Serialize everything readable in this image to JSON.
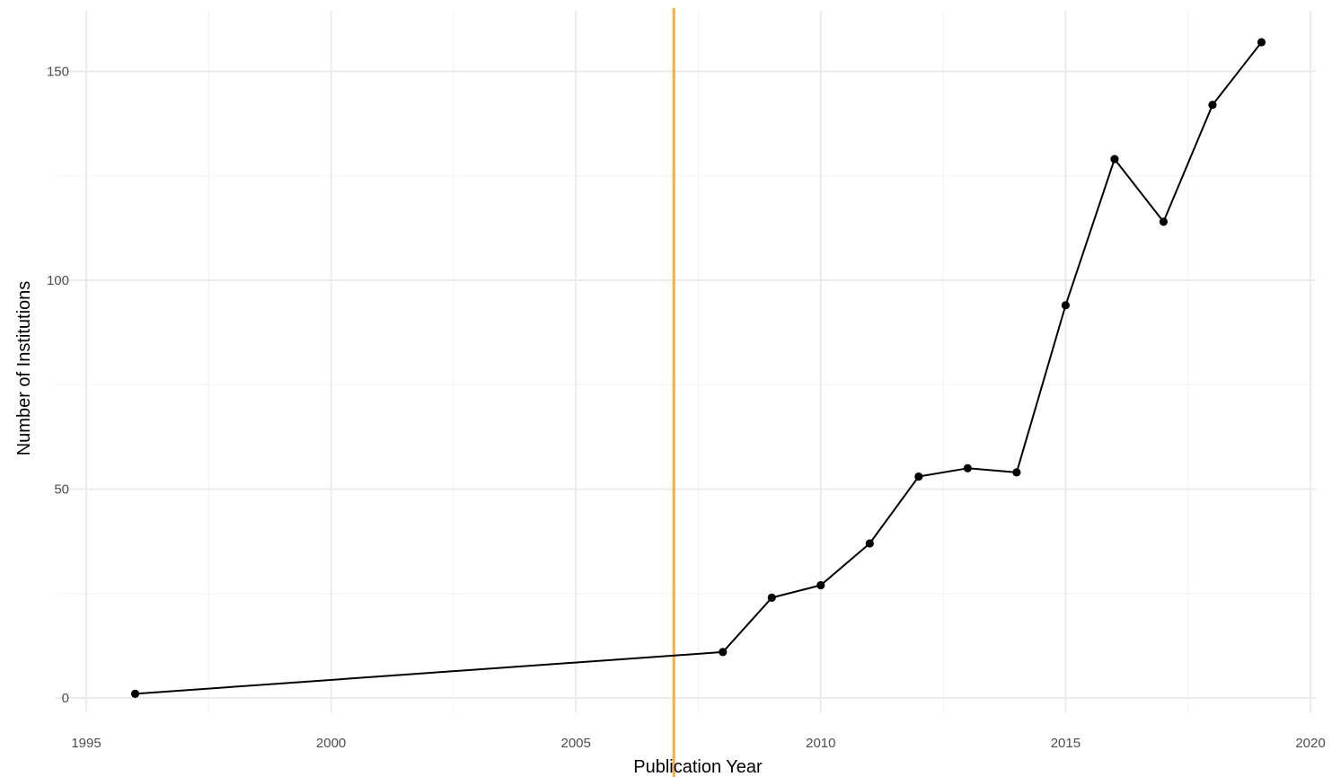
{
  "chart_data": {
    "type": "line",
    "title": "",
    "xlabel": "Publication Year",
    "ylabel": "Number of Institutions",
    "xlim": [
      1995,
      2020
    ],
    "ylim": [
      0,
      157
    ],
    "x_ticks": [
      1995,
      2000,
      2005,
      2010,
      2015,
      2020
    ],
    "y_ticks": [
      0,
      50,
      100,
      150
    ],
    "grid": true,
    "legend": "none",
    "series": [
      {
        "x": [
          1996,
          2008,
          2009,
          2010,
          2011,
          2012,
          2013,
          2014,
          2015,
          2016,
          2017,
          2018,
          2019
        ],
        "y": [
          1,
          11,
          24,
          27,
          37,
          53,
          55,
          54,
          94,
          129,
          114,
          142,
          157
        ],
        "color": "#000000",
        "markers": true
      }
    ],
    "reference_lines": [
      {
        "orientation": "vertical",
        "x": 2007,
        "color": "#F5B041"
      }
    ]
  }
}
